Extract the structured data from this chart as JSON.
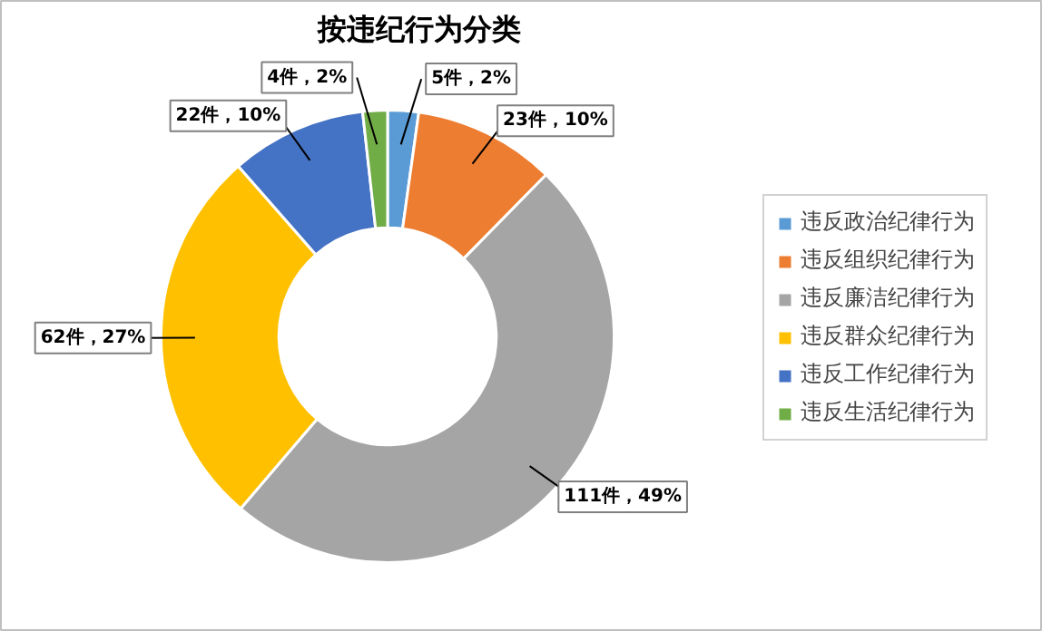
{
  "chart_data": {
    "type": "donut",
    "title": "按违纪行为分类",
    "categories": [
      "违反政治纪律行为",
      "违反组织纪律行为",
      "违反廉洁纪律行为",
      "违反群众纪律行为",
      "违反工作纪律行为",
      "违反生活纪律行为"
    ],
    "values": [
      5,
      23,
      111,
      62,
      22,
      4
    ],
    "value_labels": [
      "5件，2%",
      "23件，10%",
      "111件，49%",
      "62件，27%",
      "22件，10%",
      "4件，2%"
    ],
    "colors": [
      "#5b9bd5",
      "#ed7d31",
      "#a5a5a5",
      "#ffc000",
      "#4472c4",
      "#70ad47"
    ],
    "legend": "right"
  }
}
